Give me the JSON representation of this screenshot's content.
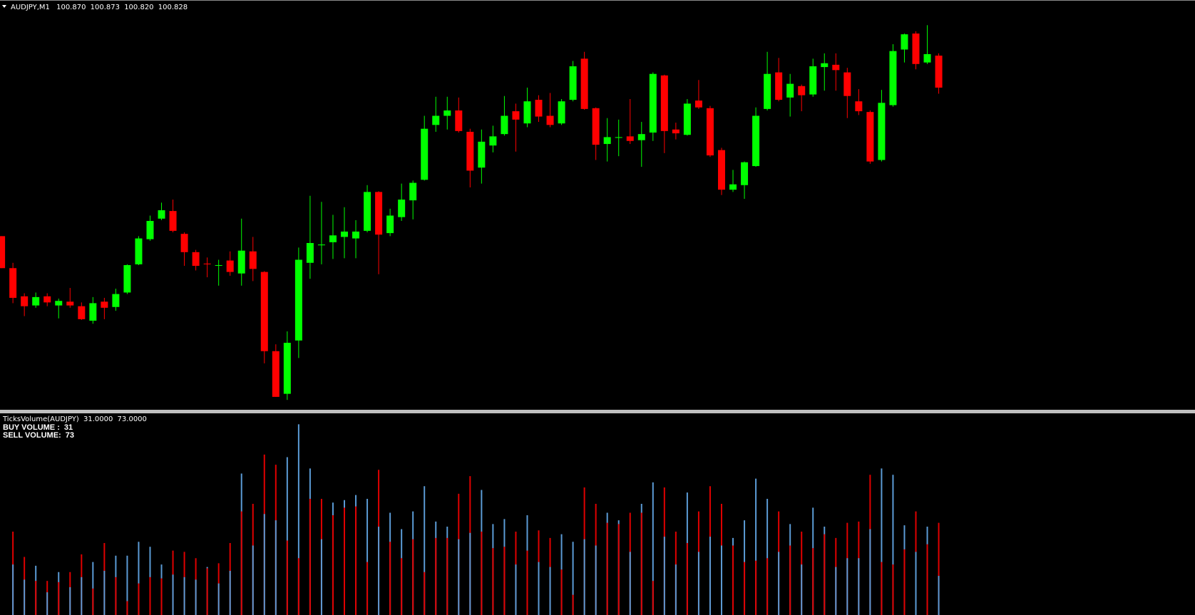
{
  "chart_data": [
    {
      "type": "candlestick",
      "title": "AUDJPY,M1",
      "ohlc_labels": [
        "100.870",
        "100.873",
        "100.820",
        "100.828"
      ],
      "up_color": "#00ff00",
      "down_color": "#ff0000",
      "ylim": [
        100.406,
        100.929
      ],
      "open": [
        100.633,
        100.591,
        100.554,
        100.542,
        100.554,
        100.542,
        100.547,
        100.541,
        100.522,
        100.547,
        100.54,
        100.559,
        100.596,
        100.629,
        100.656,
        100.666,
        100.636,
        100.612,
        100.597,
        100.595,
        100.601,
        100.584,
        100.613,
        100.586,
        100.482,
        100.426,
        100.496,
        100.598,
        100.621,
        100.625,
        100.632,
        100.63,
        100.64,
        100.691,
        100.637,
        100.658,
        100.68,
        100.707,
        100.779,
        100.791,
        100.798,
        100.77,
        100.723,
        100.752,
        100.767,
        100.797,
        100.781,
        100.812,
        100.791,
        100.781,
        100.812,
        100.866,
        100.801,
        100.754,
        100.762,
        100.764,
        100.759,
        100.769,
        100.844,
        100.773,
        100.766,
        100.811,
        100.801,
        100.746,
        100.694,
        100.7,
        100.725,
        100.8,
        100.848,
        100.815,
        100.83,
        100.819,
        100.855,
        100.858,
        100.848,
        100.81,
        100.796,
        100.733,
        100.805,
        100.878,
        100.899,
        100.861,
        100.87
      ],
      "high": [
        100.633,
        100.598,
        100.558,
        100.559,
        100.558,
        100.551,
        100.565,
        100.546,
        100.553,
        100.552,
        100.564,
        100.596,
        100.633,
        100.66,
        100.677,
        100.681,
        100.638,
        100.615,
        100.605,
        100.602,
        100.613,
        100.656,
        100.632,
        100.587,
        100.491,
        100.508,
        100.618,
        100.686,
        100.678,
        100.661,
        100.671,
        100.654,
        100.7,
        100.692,
        100.669,
        100.702,
        100.706,
        100.791,
        100.816,
        100.816,
        100.815,
        100.774,
        100.773,
        100.778,
        100.817,
        100.807,
        100.828,
        100.818,
        100.821,
        100.813,
        100.863,
        100.875,
        100.802,
        100.788,
        100.786,
        100.813,
        100.783,
        100.848,
        100.845,
        100.782,
        100.813,
        100.838,
        100.804,
        100.749,
        100.72,
        100.731,
        100.802,
        100.875,
        100.867,
        100.846,
        100.832,
        100.866,
        100.873,
        100.873,
        100.854,
        100.826,
        100.798,
        100.825,
        100.885,
        100.899,
        100.902,
        100.91,
        100.873
      ],
      "low": [
        100.591,
        100.545,
        100.528,
        100.539,
        100.541,
        100.525,
        100.539,
        100.523,
        100.518,
        100.524,
        100.535,
        100.557,
        100.595,
        100.627,
        100.654,
        100.638,
        100.594,
        100.588,
        100.579,
        100.568,
        100.581,
        100.568,
        100.574,
        100.466,
        100.422,
        100.418,
        100.473,
        100.577,
        100.596,
        100.603,
        100.604,
        100.604,
        100.638,
        100.583,
        100.633,
        100.653,
        100.655,
        100.706,
        100.77,
        100.773,
        100.769,
        100.697,
        100.702,
        100.743,
        100.765,
        100.744,
        100.776,
        100.783,
        100.776,
        100.779,
        100.81,
        100.799,
        100.733,
        100.731,
        100.738,
        100.754,
        100.724,
        100.758,
        100.742,
        100.76,
        100.765,
        100.8,
        100.737,
        100.687,
        100.691,
        100.682,
        100.724,
        100.798,
        100.81,
        100.79,
        100.797,
        100.816,
        100.824,
        100.824,
        100.788,
        100.792,
        100.728,
        100.731,
        100.803,
        100.861,
        100.852,
        100.859,
        100.82
      ],
      "close": [
        100.591,
        100.552,
        100.541,
        100.553,
        100.546,
        100.548,
        100.542,
        100.524,
        100.545,
        100.539,
        100.557,
        100.595,
        100.63,
        100.653,
        100.667,
        100.64,
        100.612,
        100.594,
        100.596,
        100.595,
        100.586,
        100.614,
        100.59,
        100.482,
        100.422,
        100.493,
        100.602,
        100.624,
        100.622,
        100.634,
        100.639,
        100.639,
        100.691,
        100.635,
        100.66,
        100.681,
        100.703,
        100.774,
        100.791,
        100.798,
        100.771,
        100.719,
        100.757,
        100.764,
        100.791,
        100.786,
        100.81,
        100.79,
        100.779,
        100.81,
        100.856,
        100.8,
        100.753,
        100.763,
        100.763,
        100.758,
        100.767,
        100.846,
        100.771,
        100.768,
        100.807,
        100.802,
        100.739,
        100.694,
        100.701,
        100.73,
        100.791,
        100.846,
        100.812,
        100.833,
        100.818,
        100.856,
        100.86,
        100.851,
        100.817,
        100.797,
        100.731,
        100.808,
        100.876,
        100.898,
        100.859,
        100.872,
        100.828
      ]
    },
    {
      "type": "bar",
      "title": "TicksVolume(AUDJPY)",
      "value_labels": [
        "31.0000",
        "73.0000"
      ],
      "ylim": [
        0,
        158
      ],
      "series": [
        {
          "name": "BUY VOLUME :",
          "color": "#5b9bd5",
          "values": [
            null,
            40,
            28,
            39,
            18,
            34,
            22,
            30,
            42,
            35,
            47,
            47,
            58,
            54,
            40,
            32,
            30,
            28,
            38,
            25,
            35,
            112,
            55,
            80,
            75,
            125,
            151,
            116,
            60,
            89,
            91,
            95,
            92,
            70,
            81,
            68,
            82,
            102,
            74,
            70,
            60,
            65,
            99,
            72,
            76,
            40,
            79,
            42,
            38,
            64,
            58,
            60,
            55,
            81,
            75,
            50,
            88,
            105,
            62,
            40,
            97,
            50,
            62,
            55,
            61,
            75,
            108,
            92,
            50,
            72,
            40,
            85,
            70,
            38,
            45,
            45,
            68,
            116,
            111,
            71,
            50,
            70,
            31
          ]
        },
        {
          "name": "SELL VOLUME:",
          "color": "#e00000",
          "values": [
            null,
            66,
            46,
            27,
            27,
            26,
            34,
            48,
            21,
            57,
            30,
            11,
            25,
            30,
            29,
            51,
            50,
            45,
            37,
            41,
            57,
            82,
            88,
            127,
            119,
            59,
            45,
            92,
            92,
            79,
            85,
            86,
            42,
            115,
            58,
            45,
            60,
            34,
            61,
            61,
            96,
            110,
            66,
            53,
            54,
            66,
            51,
            67,
            61,
            36,
            16,
            101,
            88,
            73,
            72,
            81,
            81,
            27,
            101,
            66,
            57,
            82,
            102,
            88,
            55,
            42,
            43,
            45,
            82,
            55,
            66,
            53,
            64,
            61,
            73,
            74,
            111,
            42,
            40,
            52,
            82,
            56,
            73
          ]
        }
      ]
    }
  ]
}
